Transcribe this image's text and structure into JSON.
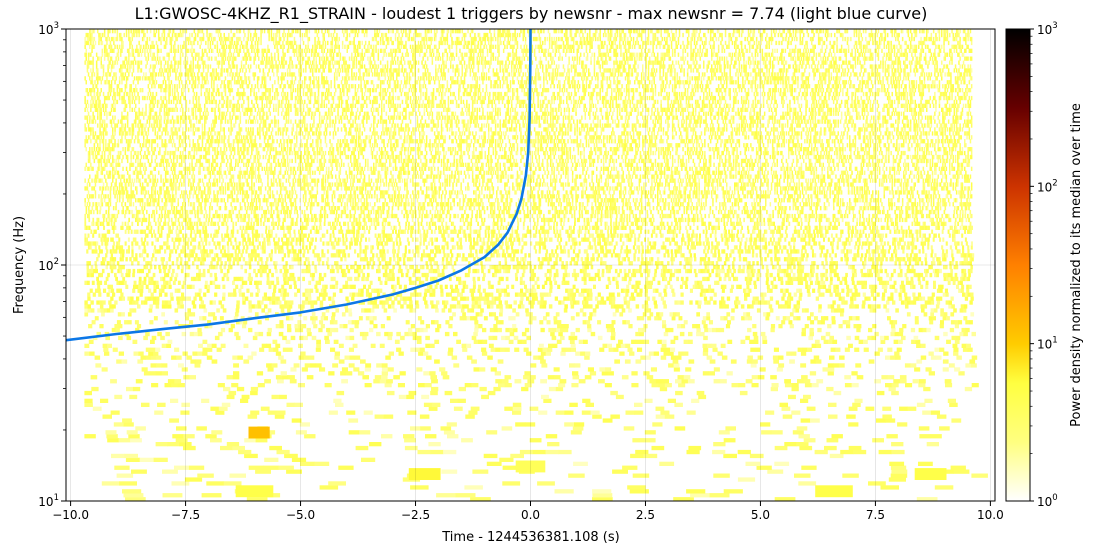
{
  "chart_data": {
    "type": "heatmap",
    "title": "L1:GWOSC-4KHZ_R1_STRAIN - loudest 1 triggers by newsnr - max newsnr = 7.74 (light blue curve)",
    "xlabel": "Time - 1244536381.108 (s)",
    "ylabel": "Frequency (Hz)",
    "colorbar_label": "Power density normalized to its median over time",
    "xlim": [
      -10.1,
      10.1
    ],
    "ylim": [
      10,
      1000
    ],
    "y_scale": "log",
    "colormap": "afmhot_r",
    "color_range": [
      1,
      1000
    ],
    "color_scale": "log",
    "grid": true,
    "x_ticks": [
      -10.0,
      -7.5,
      -5.0,
      -2.5,
      0.0,
      2.5,
      5.0,
      7.5,
      10.0
    ],
    "x_tick_labels": [
      "−10.0",
      "−7.5",
      "−5.0",
      "−2.5",
      "0.0",
      "2.5",
      "5.0",
      "7.5",
      "10.0"
    ],
    "y_ticks": [
      10,
      100,
      1000
    ],
    "y_tick_labels": [
      {
        "base": "10",
        "exp": "1"
      },
      {
        "base": "10",
        "exp": "2"
      },
      {
        "base": "10",
        "exp": "3"
      }
    ],
    "colorbar_ticks": [
      1,
      10,
      100,
      1000
    ],
    "colorbar_tick_labels": [
      {
        "base": "10",
        "exp": "0"
      },
      {
        "base": "10",
        "exp": "1"
      },
      {
        "base": "10",
        "exp": "2"
      },
      {
        "base": "10",
        "exp": "3"
      }
    ],
    "spectrogram": {
      "t_range": [
        -9.7,
        9.6
      ],
      "f_range": [
        10,
        1000
      ],
      "background_level": 1.0,
      "typical_high_freq_level": 3.0,
      "max_level": 12.0,
      "hot_spots": [
        {
          "t": -5.9,
          "f": 19.5,
          "level": 12
        },
        {
          "t": -2.3,
          "f": 13.0,
          "level": 6
        },
        {
          "t": 8.7,
          "f": 13.0,
          "level": 5
        },
        {
          "t": 6.6,
          "f": 11.0,
          "level": 5
        },
        {
          "t": -6.0,
          "f": 11.0,
          "level": 5
        },
        {
          "t": 0.0,
          "f": 14.0,
          "level": 4
        }
      ]
    },
    "series": [
      {
        "name": "loudest trigger",
        "type": "line",
        "color": "#0c77e6",
        "x": [
          -10.1,
          -9.0,
          -8.0,
          -7.0,
          -6.0,
          -5.0,
          -4.0,
          -3.0,
          -2.5,
          -2.0,
          -1.5,
          -1.0,
          -0.7,
          -0.5,
          -0.3,
          -0.2,
          -0.1,
          -0.05,
          -0.02,
          -0.005,
          0.0
        ],
        "y": [
          48,
          51,
          53.5,
          56,
          59.5,
          63,
          68,
          75,
          80,
          86,
          95,
          108,
          122,
          137,
          165,
          190,
          240,
          300,
          420,
          700,
          1000
        ]
      }
    ]
  }
}
